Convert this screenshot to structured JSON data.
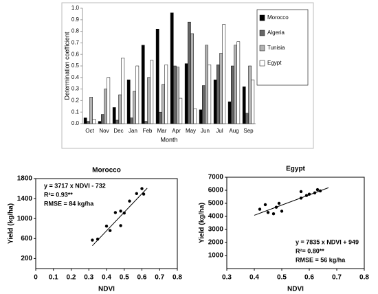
{
  "chart_data": [
    {
      "type": "bar",
      "y_label": "Determination coefficient",
      "x_label": "Month",
      "categories": [
        "Oct",
        "Nov",
        "Dec",
        "Jan",
        "Feb",
        "Mar",
        "Apr",
        "May",
        "Jun",
        "Jul",
        "Aug",
        "Sep"
      ],
      "series": [
        {
          "name": "Morocco",
          "color": "#000000",
          "values": [
            0.05,
            0.02,
            0.14,
            0.38,
            0.68,
            0.82,
            0.96,
            0.52,
            0.12,
            0.38,
            0.19,
            0.32
          ]
        },
        {
          "name": "Algeria",
          "color": "#666666",
          "values": [
            0.02,
            0.08,
            0.03,
            0.05,
            0.02,
            0.1,
            0.5,
            0.88,
            0.33,
            0.51,
            0.5,
            0.09
          ]
        },
        {
          "name": "Tunisia",
          "color": "#b3b3b3",
          "values": [
            0.23,
            0.3,
            0.25,
            0.28,
            0.4,
            0.34,
            0.49,
            0.78,
            0.68,
            0.61,
            0.68,
            0.5
          ]
        },
        {
          "name": "Egypt",
          "color": "#ffffff",
          "values": [
            0.04,
            0.4,
            0.57,
            0.5,
            0.55,
            0.51,
            0.22,
            0.13,
            0.51,
            0.86,
            0.71,
            0.38
          ]
        }
      ],
      "ylim": [
        0,
        1
      ],
      "yticks": [
        {
          "value": 0,
          "label": "0.0"
        },
        0.1,
        0.2,
        0.3,
        0.4,
        0.5,
        0.6,
        0.7,
        0.8,
        0.9,
        {
          "value": 1,
          "label": "1.0"
        }
      ],
      "legend": "right"
    },
    {
      "type": "scatter",
      "title": "Morocco",
      "x_label": "NDVI",
      "y_label": "Yield (kg/ha)",
      "x": [
        0.32,
        0.35,
        0.4,
        0.42,
        0.45,
        0.48,
        0.48,
        0.5,
        0.53,
        0.57,
        0.6,
        0.61
      ],
      "values": [
        570,
        590,
        850,
        760,
        1120,
        1150,
        860,
        1110,
        1350,
        1500,
        1600,
        1490
      ],
      "color": "#000000",
      "trend": {
        "slope": 3717,
        "intercept": -732,
        "x": [
          0.32,
          0.63
        ]
      },
      "annotations": [
        "y = 3717 x NDVI - 732",
        "R²= 0.93**",
        "RMSE = 84 kg/ha"
      ],
      "xlim": [
        0,
        0.8
      ],
      "xticks": [
        0,
        0.1,
        0.2,
        0.3,
        0.4,
        0.5,
        0.6,
        0.7,
        0.8
      ],
      "ylim": [
        0,
        1800
      ],
      "yticks": [
        200,
        600,
        1000,
        1400,
        1800
      ],
      "annotation_corner": "top-left"
    },
    {
      "type": "scatter",
      "title": "Egypt",
      "x_label": "NDVI",
      "y_label": "Yield (kg/ha)",
      "x": [
        0.42,
        0.44,
        0.45,
        0.47,
        0.48,
        0.49,
        0.5,
        0.57,
        0.57,
        0.59,
        0.6,
        0.62,
        0.63,
        0.64
      ],
      "values": [
        4550,
        4900,
        4300,
        4200,
        4700,
        5000,
        4400,
        5400,
        5900,
        5600,
        5700,
        5800,
        6050,
        5950
      ],
      "color": "#000000",
      "trend": {
        "slope": 7835,
        "intercept": 949,
        "x": [
          0.4,
          0.67
        ]
      },
      "annotations": [
        "y = 7835 x NDVI + 949",
        "R²= 0.80**",
        "RMSE = 56 kg/ha"
      ],
      "xlim": [
        0.3,
        0.8
      ],
      "xticks": [
        0.3,
        0.4,
        0.5,
        0.6,
        0.7,
        0.8
      ],
      "ylim": [
        0,
        7000
      ],
      "yticks": [
        1000,
        2000,
        3000,
        4000,
        5000,
        6000,
        7000
      ],
      "annotation_corner": "bottom-right"
    }
  ]
}
